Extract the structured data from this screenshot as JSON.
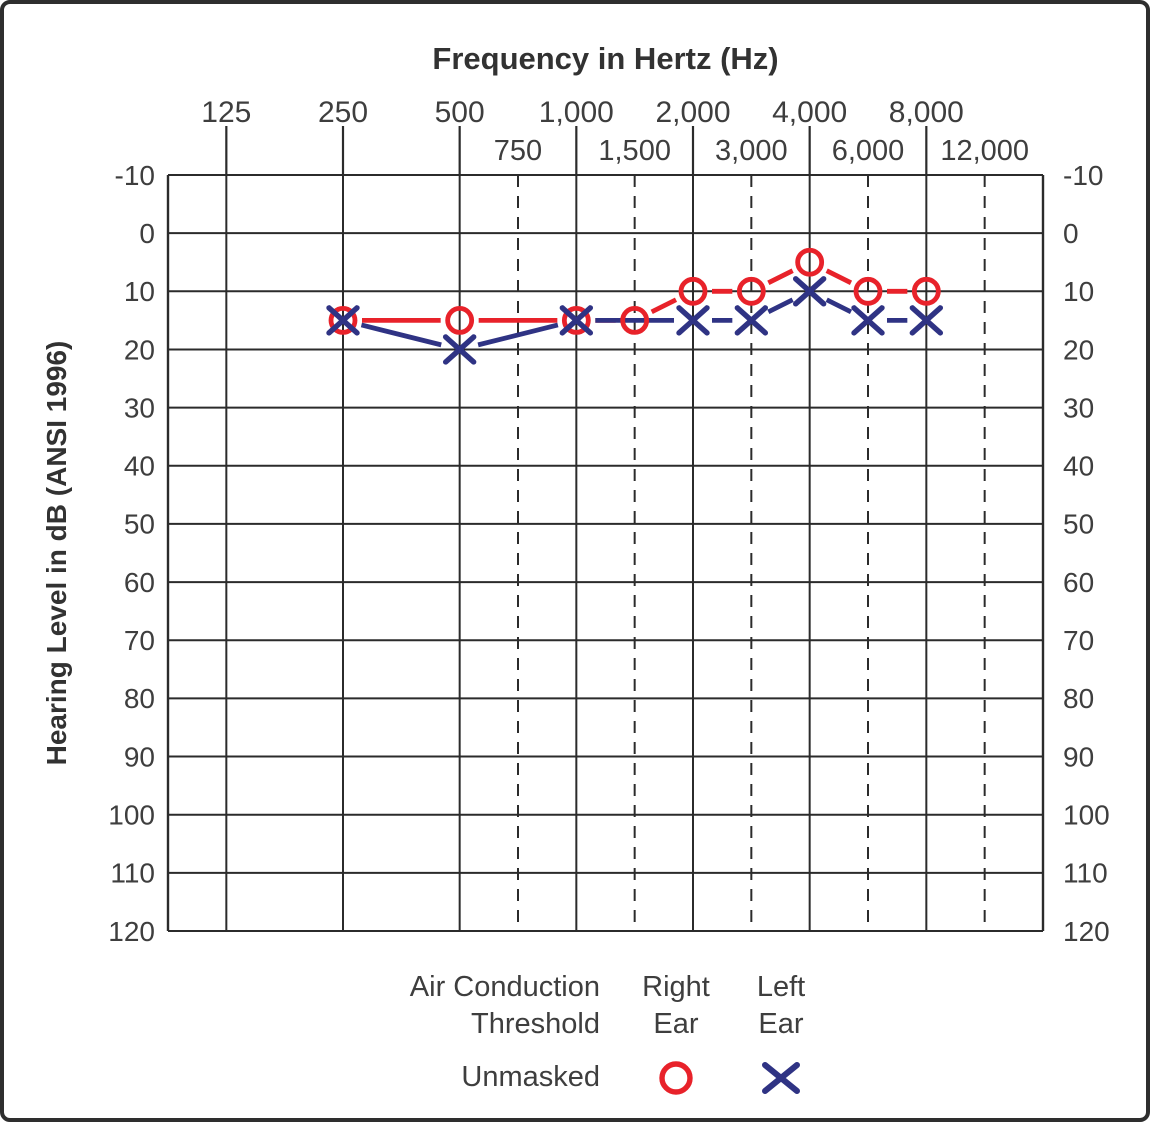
{
  "colors": {
    "grid": "#2b2b2b",
    "text": "#3e3e3e",
    "right_ear": "#e8222a",
    "left_ear": "#2f3384",
    "page_border": "#2e2e2e"
  },
  "chart_data": {
    "type": "line",
    "title": "Frequency in Hertz (Hz)",
    "ylabel": "Hearing Level in dB (ANSI 1996)",
    "x_scale": "octave",
    "x_octave_ticks": [
      "125",
      "250",
      "500",
      "1,000",
      "2,000",
      "4,000",
      "8,000"
    ],
    "x_octave_values": [
      125,
      250,
      500,
      1000,
      2000,
      4000,
      8000
    ],
    "x_interoctave_ticks": [
      "750",
      "1,500",
      "3,000",
      "6,000",
      "12,000"
    ],
    "x_interoctave_values": [
      750,
      1500,
      3000,
      6000,
      12000
    ],
    "y_ticks": [
      -10,
      0,
      10,
      20,
      30,
      40,
      50,
      60,
      70,
      80,
      90,
      100,
      110,
      120
    ],
    "ylim": [
      -10,
      120
    ],
    "grid": "on",
    "legend_position": "bottom",
    "series": [
      {
        "id": "right-ear",
        "name": "Right Ear Air Conduction Unmasked",
        "marker": "circle",
        "color": "#e8222a",
        "points": [
          [
            250,
            15
          ],
          [
            500,
            15
          ],
          [
            1000,
            15
          ],
          [
            1500,
            15
          ],
          [
            2000,
            10
          ],
          [
            3000,
            10
          ],
          [
            4000,
            5
          ],
          [
            6000,
            10
          ],
          [
            8000,
            10
          ]
        ]
      },
      {
        "id": "left-ear",
        "name": "Left Ear Air Conduction Unmasked",
        "marker": "x",
        "color": "#2f3384",
        "points": [
          [
            250,
            15
          ],
          [
            500,
            20
          ],
          [
            1000,
            15
          ],
          [
            2000,
            15
          ],
          [
            3000,
            15
          ],
          [
            4000,
            10
          ],
          [
            6000,
            15
          ],
          [
            8000,
            15
          ]
        ]
      }
    ]
  },
  "legend": {
    "row_header_line1": "Air Conduction",
    "row_header_line2": "Threshold",
    "right_col_line1": "Right",
    "right_col_line2": "Ear",
    "left_col_line1": "Left",
    "left_col_line2": "Ear",
    "row1_label": "Unmasked"
  }
}
